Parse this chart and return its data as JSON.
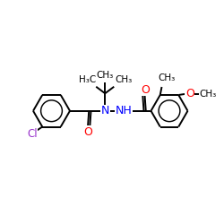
{
  "bg_color": "#ffffff",
  "bond_color": "#000000",
  "bond_width": 1.4,
  "font_size": 8,
  "figsize": [
    2.5,
    2.5
  ],
  "dpi": 100,
  "colors": {
    "Cl": "#9933cc",
    "O": "#ff0000",
    "N": "#0000ff",
    "C": "#000000"
  },
  "xlim": [
    0,
    10
  ],
  "ylim": [
    0,
    10
  ]
}
